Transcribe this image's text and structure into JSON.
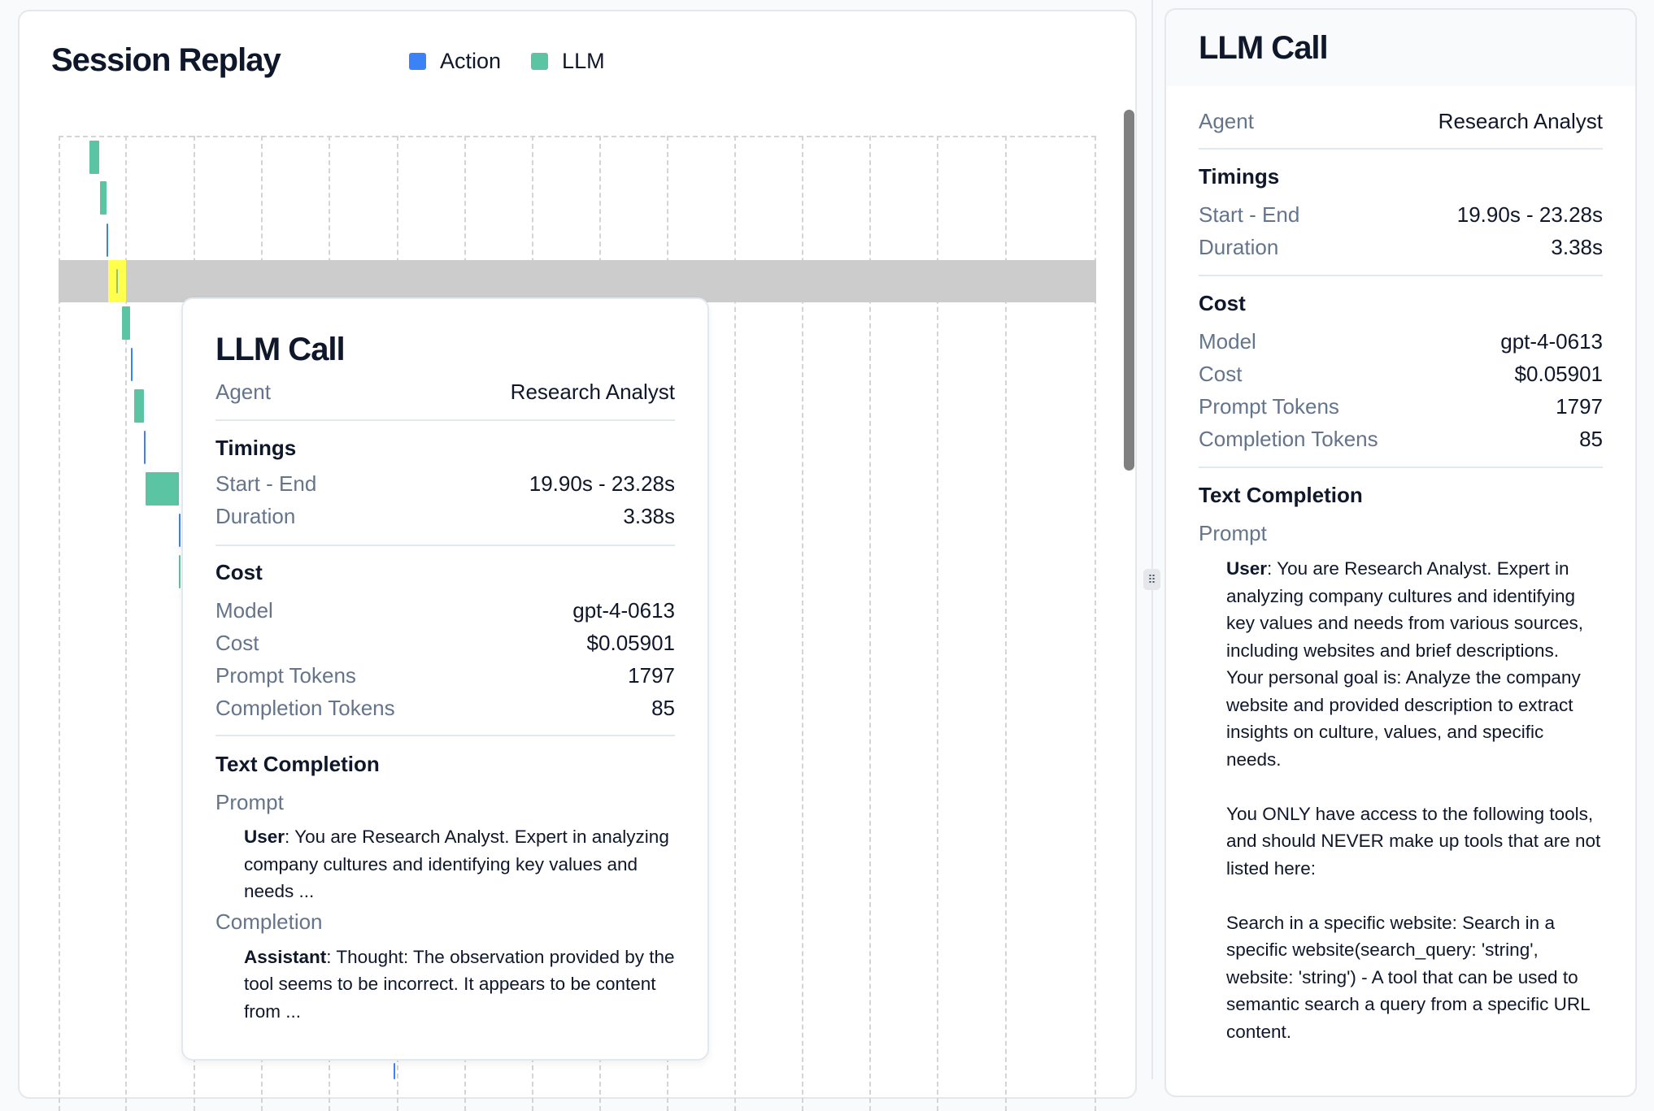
{
  "session": {
    "title": "Session Replay",
    "legend": [
      {
        "label": "Action",
        "color": "#3b82f6"
      },
      {
        "label": "LLM",
        "color": "#5bc4a2"
      }
    ],
    "highlight_color": "#ffff4d",
    "events": [
      {
        "type": "llm"
      },
      {
        "type": "llm"
      },
      {
        "type": "action"
      },
      {
        "type": "llm",
        "selected": true
      },
      {
        "type": "llm"
      },
      {
        "type": "action"
      },
      {
        "type": "llm"
      },
      {
        "type": "action"
      },
      {
        "type": "llm"
      },
      {
        "type": "action"
      },
      {
        "type": "llm"
      },
      {
        "type": "action"
      }
    ]
  },
  "llm_call": {
    "title": "LLM Call",
    "agent_label": "Agent",
    "agent": "Research Analyst",
    "timings_heading": "Timings",
    "start_end_label": "Start - End",
    "start_end": "19.90s - 23.28s",
    "duration_label": "Duration",
    "duration": "3.38s",
    "cost_heading": "Cost",
    "model_label": "Model",
    "model": "gpt-4-0613",
    "cost_label": "Cost",
    "cost": "$0.05901",
    "prompt_tokens_label": "Prompt Tokens",
    "prompt_tokens": "1797",
    "completion_tokens_label": "Completion Tokens",
    "completion_tokens": "85",
    "text_completion_heading": "Text Completion",
    "prompt_label": "Prompt",
    "completion_label": "Completion",
    "user_role": "User",
    "assistant_role": "Assistant"
  },
  "tooltip": {
    "prompt_preview": ": You are Research Analyst. Expert in analyzing company cultures and identifying key values and needs ...",
    "completion_preview": ": Thought: The observation provided by the tool seems to be incorrect. It appears to be content from ..."
  },
  "panel": {
    "prompt_text": ": You are Research Analyst. Expert in analyzing company cultures and identifying key values and needs from various sources, including websites and brief descriptions.\nYour personal goal is: Analyze the company website and provided description to extract insights on culture, values, and specific needs.\n\nYou ONLY have access to the following tools, and should NEVER make up tools that are not listed here:\n\nSearch in a specific website: Search in a specific website(search_query: 'string', website: 'string') - A tool that can be used to semantic search a query from a specific URL content."
  }
}
